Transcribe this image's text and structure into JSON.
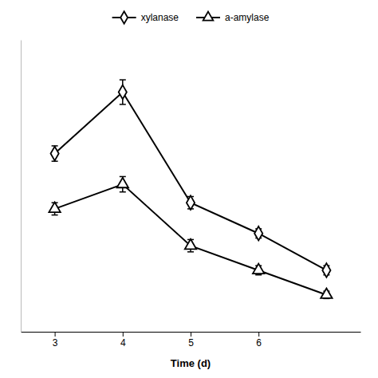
{
  "chart_data": {
    "type": "line",
    "x": [
      3,
      4,
      5,
      6,
      7
    ],
    "series": [
      {
        "name": "xylanase",
        "color": "#000000",
        "marker": "diamond",
        "values": [
          0.68,
          0.88,
          0.52,
          0.42,
          0.3
        ],
        "errors": [
          0.025,
          0.04,
          0.02,
          0.015,
          0.015
        ]
      },
      {
        "name": "a-amylase",
        "color": "#000000",
        "marker": "triangle",
        "values": [
          0.5,
          0.58,
          0.38,
          0.3,
          0.22
        ],
        "errors": [
          0.02,
          0.025,
          0.02,
          0.015,
          0.012
        ]
      }
    ],
    "xlabel": "Time (d)",
    "xlim": [
      2.5,
      7.5
    ],
    "xticks": [
      3,
      4,
      5,
      6
    ],
    "ylim": [
      0.1,
      1.05
    ],
    "tick_labels": "x",
    "legend": "top"
  }
}
